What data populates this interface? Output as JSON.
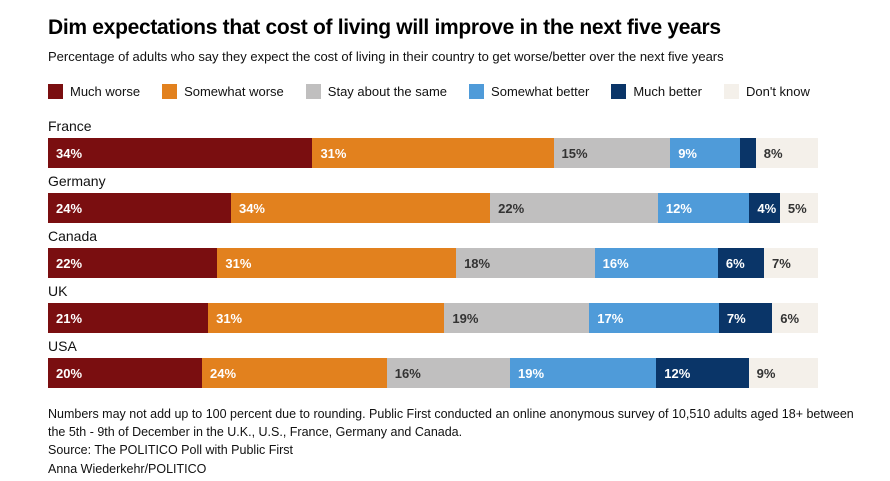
{
  "title": "Dim expectations that cost of living will improve in the next five years",
  "subtitle": "Percentage of adults who say they expect the cost of living in their country to get worse/better over the next five years",
  "colors": {
    "much_worse": "#7a0e10",
    "somewhat_worse": "#e2811e",
    "stay_same": "#c0bfbf",
    "somewhat_better": "#4f9bd9",
    "much_better": "#0a3568",
    "dont_know": "#f4f0ea"
  },
  "chart_data": {
    "type": "bar",
    "variant": "horizontal-stacked-percent",
    "categories": [
      "France",
      "Germany",
      "Canada",
      "UK",
      "USA"
    ],
    "series": [
      {
        "name": "Much worse",
        "color": "#7a0e10",
        "label_color": "#ffffff",
        "values": [
          34,
          24,
          22,
          21,
          20
        ]
      },
      {
        "name": "Somewhat worse",
        "color": "#e2811e",
        "label_color": "#ffffff",
        "values": [
          31,
          34,
          31,
          31,
          24
        ]
      },
      {
        "name": "Stay about the same",
        "color": "#c0bfbf",
        "label_color": "#333333",
        "values": [
          15,
          22,
          18,
          19,
          16
        ]
      },
      {
        "name": "Somewhat better",
        "color": "#4f9bd9",
        "label_color": "#ffffff",
        "values": [
          9,
          12,
          16,
          17,
          19
        ]
      },
      {
        "name": "Much better",
        "color": "#0a3568",
        "label_color": "#ffffff",
        "values": [
          2,
          4,
          6,
          7,
          12
        ]
      },
      {
        "name": "Don't know",
        "color": "#f4f0ea",
        "label_color": "#333333",
        "values": [
          8,
          5,
          7,
          6,
          9
        ]
      }
    ],
    "label_suffix": "%",
    "min_label_width_pct": 3.5,
    "legend_position": "top",
    "grid": false
  },
  "footnote": "Numbers may not add up to 100 percent due to rounding. Public First conducted an online anonymous survey of 10,510 adults aged 18+ between the 5th - 9th of December in the U.K., U.S., France, Germany and Canada.",
  "source": "Source: The POLITICO Poll with Public First",
  "credit": "Anna Wiederkehr/POLITICO"
}
